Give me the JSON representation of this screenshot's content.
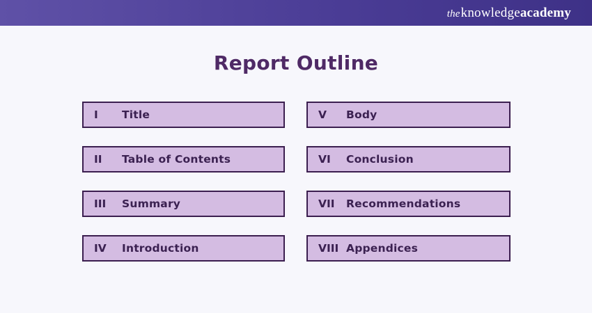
{
  "header": {
    "logo": {
      "the": "the",
      "knowledge": "knowledge",
      "academy": "academy"
    }
  },
  "page": {
    "title": "Report Outline"
  },
  "outline": {
    "items": [
      {
        "numeral": "I",
        "label": "Title"
      },
      {
        "numeral": "II",
        "label": "Table of Contents"
      },
      {
        "numeral": "III",
        "label": "Summary"
      },
      {
        "numeral": "IV",
        "label": "Introduction"
      },
      {
        "numeral": "V",
        "label": "Body"
      },
      {
        "numeral": "VI",
        "label": "Conclusion"
      },
      {
        "numeral": "VII",
        "label": "Recommendations"
      },
      {
        "numeral": "VIII",
        "label": "Appendices"
      }
    ]
  },
  "colors": {
    "header_gradient_start": "#5f51a7",
    "header_gradient_end": "#3e3187",
    "background": "#f7f7fc",
    "title_text": "#4f2a66",
    "box_fill": "#d4bce2",
    "box_border": "#3b1e4f",
    "box_text": "#3b2151",
    "logo_text": "#ffffff"
  }
}
